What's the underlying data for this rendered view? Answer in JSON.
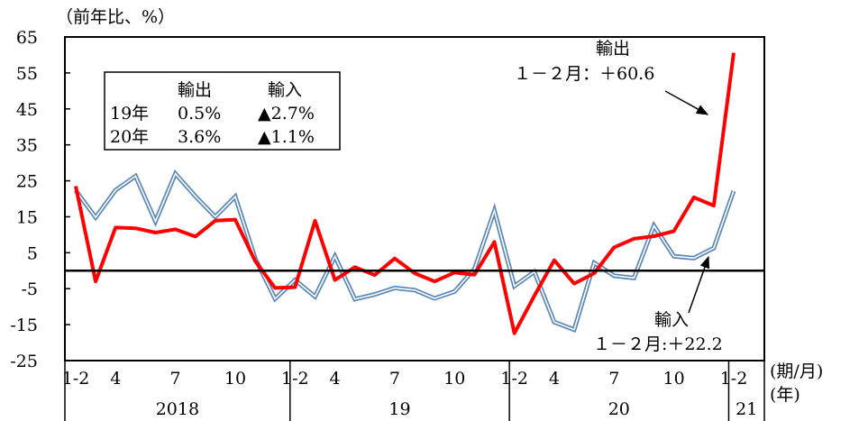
{
  "chart_data": {
    "type": "line",
    "y_unit_label": "（前年比、%）",
    "x_period_unit": "(期/月)",
    "x_year_unit": "(年)",
    "ylim": [
      -25,
      65
    ],
    "yticks": [
      65,
      55,
      45,
      35,
      25,
      15,
      5,
      -5,
      -15,
      -25
    ],
    "grid": false,
    "x": [
      "2018 1-2",
      "2018 3",
      "2018 4",
      "2018 5",
      "2018 6",
      "2018 7",
      "2018 8",
      "2018 9",
      "2018 10",
      "2018 11",
      "2018 12",
      "2019 1-2",
      "2019 3",
      "2019 4",
      "2019 5",
      "2019 6",
      "2019 7",
      "2019 8",
      "2019 9",
      "2019 10",
      "2019 11",
      "2019 12",
      "2020 1-2",
      "2020 3",
      "2020 4",
      "2020 5",
      "2020 6",
      "2020 7",
      "2020 8",
      "2020 9",
      "2020 10",
      "2020 11",
      "2020 12",
      "2021 1-2"
    ],
    "month_ticks": [
      {
        "label": "1-2",
        "index": 0
      },
      {
        "label": "4",
        "index": 2
      },
      {
        "label": "7",
        "index": 5
      },
      {
        "label": "10",
        "index": 8
      },
      {
        "label": "1-2",
        "index": 11
      },
      {
        "label": "4",
        "index": 13
      },
      {
        "label": "7",
        "index": 16
      },
      {
        "label": "10",
        "index": 19
      },
      {
        "label": "1-2",
        "index": 22
      },
      {
        "label": "4",
        "index": 24
      },
      {
        "label": "7",
        "index": 27
      },
      {
        "label": "10",
        "index": 30
      },
      {
        "label": "1-2",
        "index": 33
      }
    ],
    "year_groups": [
      {
        "label": "2018",
        "start": 0,
        "end": 10
      },
      {
        "label": "19",
        "start": 11,
        "end": 21
      },
      {
        "label": "20",
        "start": 22,
        "end": 32
      },
      {
        "label": "21",
        "start": 33,
        "end": 33
      }
    ],
    "series": [
      {
        "name": "輸出",
        "color": "#ff0000",
        "style": "thick",
        "values": [
          23.5,
          -3.0,
          12.0,
          11.8,
          10.6,
          11.5,
          9.5,
          13.9,
          14.2,
          2.7,
          -4.8,
          -4.6,
          13.9,
          -2.6,
          1.0,
          -1.2,
          3.4,
          -0.7,
          -3.0,
          -0.5,
          -1.1,
          8.0,
          -17.4,
          -7.0,
          2.9,
          -3.6,
          -0.7,
          6.5,
          8.9,
          9.6,
          11.0,
          20.4,
          18.1,
          60.6
        ]
      },
      {
        "name": "輸入",
        "color": "#5b88b8",
        "style": "double",
        "values": [
          22.3,
          14.8,
          22.4,
          26.3,
          13.7,
          27.0,
          20.7,
          15.0,
          20.6,
          3.4,
          -7.8,
          -2.6,
          -7.2,
          4.0,
          -7.9,
          -6.6,
          -4.8,
          -5.4,
          -7.7,
          -5.8,
          0.5,
          16.7,
          -4.3,
          -0.3,
          -14.3,
          -16.4,
          2.2,
          -1.4,
          -2.0,
          12.5,
          4.0,
          3.5,
          6.3,
          22.2
        ]
      }
    ],
    "annotations": {
      "export_name": "輸出",
      "export_value": "１－２月：＋60.6",
      "import_name": "輸入",
      "import_value": "１－２月:＋22.2"
    },
    "summary_table": {
      "headers": [
        "",
        "輸出",
        "輸入"
      ],
      "rows": [
        [
          "19年",
          "0.5%",
          "▲2.7%"
        ],
        [
          "20年",
          "3.6%",
          "▲1.1%"
        ]
      ]
    }
  }
}
